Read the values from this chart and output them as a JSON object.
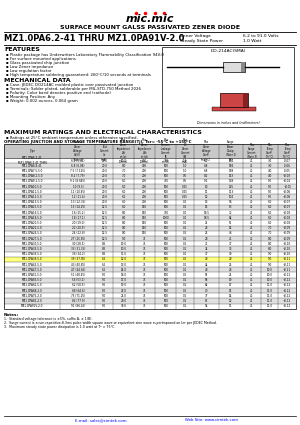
{
  "title_company": "SURFACE MOUNT GALSS PASSIVATED ZENER DIODE",
  "part_range": "MZ1.0PA6.2-41 THRU MZ1.0PA91V-2.0",
  "zener_voltage_label": "Zener Voltage",
  "zener_voltage_val": "6.2 to 91.0 Volts",
  "steady_state_label": "Steady State Power",
  "steady_state_val": "1.0 Watt",
  "features_title": "FEATURES",
  "features": [
    "Plastic package has Underwriters Laboratory Flammability Classification 94V-0",
    "For surface mounted applications",
    "Glass passivated chip junction",
    "Low Zener impedance",
    "Low regulation factor",
    "High temperature soldering guaranteed: 260°C/10 seconds at terminals"
  ],
  "mech_title": "MECHANICAL DATA",
  "mech_data": [
    "Case: JEDEC DO214AC molded plastic over passivated junction",
    "Terminals: Solder plated, solderable per MIL-STD-750 Method 2026",
    "Polarity: Color band denotes positive end (cathode)",
    "Mounting Position: Any",
    "Weight: 0.002 ounces, 0.064 gram"
  ],
  "ratings_title": "MAXIMUM RATINGS AND ELECTRICAL CHARACTERISTICS",
  "ratings_note": "Ratings at 25°C ambient temperature unless otherwise specified.",
  "op_temp": "OPERATING JUNCTION AND STORAGE TEMPERATURE RANGE(Tj), Tsт= -55°C to +150°C",
  "col_headers_line1": [
    "",
    "Nominal Zener",
    "",
    "Max. Zener",
    "Max. Zener",
    "Max Reverse",
    "",
    "Maximum",
    "Maximum",
    "Maximum",
    "Minimum",
    "Maximum"
  ],
  "col_headers_line2": [
    "",
    "Voltage",
    "Zener Test",
    "Impedance",
    "Impedance",
    "Leakage",
    "Maximum",
    "Zener",
    "Surge",
    "Surge",
    "Temperature",
    "Temperature"
  ],
  "col_headers_line3": [
    "Type",
    "Vz (Volts)",
    "Current",
    "Zzt at Izt",
    "Zzk at Izk",
    "Current IR",
    "DC Zener",
    "Voltage",
    "Power",
    "Current",
    "Coefficient",
    "Coefficient"
  ],
  "col_headers_line4": [
    "",
    "(Note 1)",
    "Izt (mA)",
    "(Ohms)",
    "(Ohms)",
    "at VR",
    "Current IzM",
    "Coefficient",
    "Dissipation",
    "(Note 3)",
    "(%/°C)",
    "(%/°C)"
  ],
  "table_data": [
    [
      "MZ1.0PA6.2-41\nMZ1.0PA6.2-41 THRU",
      "6.2 (5.81)",
      "20.0",
      "10.0",
      "400",
      "750",
      "1.0",
      "6.2",
      "204",
      "41",
      "3.0",
      "-0.07"
    ],
    [
      "MZ1.0PA6.8-41",
      "6.8 (6.08)",
      "20.0",
      "8.0",
      "400",
      "500",
      "1.0",
      "6.8",
      "186",
      "41",
      "3.0",
      "-0.06"
    ],
    [
      "MZ1.0PA7.5-5.0",
      "7.5 (7.125)",
      "20.0",
      "7.0",
      "200",
      "500",
      "1.0",
      "6.8",
      "168",
      "41",
      "4.0",
      "-0.05"
    ],
    [
      "MZ1.0PA8.2-5.0",
      "8.2 (7.79)",
      "20.0",
      "7.0",
      "200",
      "500",
      "0.5",
      "8.2",
      "153",
      "41",
      "4.0",
      "+0.03"
    ],
    [
      "MZ1.0PA9.1-5.0",
      "9.1 (8.645)",
      "20.0",
      "6.0",
      "200",
      "750",
      "0.5",
      "9.1",
      "138",
      "41",
      "5.0",
      "+0.04"
    ],
    [
      "MZ1.0PA10-5.0",
      "10 (9.5)",
      "20.0",
      "6.0",
      "200",
      "500",
      "0.25",
      "10",
      "125",
      "41",
      "5.0",
      "+0.05"
    ],
    [
      "MZ1.0PA11-5.0",
      "11 (10.45)",
      "20.0",
      "6.0",
      "200",
      "500",
      "0.25",
      "11",
      "113",
      "41",
      "5.0",
      "+0.06"
    ],
    [
      "MZ1.0PA12-5.0",
      "12 (11.4)",
      "20.0",
      "6.0",
      "200",
      "500",
      "0.25",
      "12",
      "104",
      "41",
      "5.0",
      "+0.06"
    ],
    [
      "MZ1.0PA13-5.0",
      "13 (12.35)",
      "20.0",
      "6.0",
      "200",
      "500",
      "0.1",
      "13",
      "96",
      "41",
      "6.0",
      "+0.07"
    ],
    [
      "MZ1.0PA15-5.0",
      "15 (14.25)",
      "12.5",
      "6.0",
      "150",
      "500",
      "0.1",
      "15",
      "83",
      "41",
      "6.0",
      "+0.07"
    ],
    [
      "MZ1.0PA16-5.0",
      "16 (15.2)",
      "12.5",
      "8.0",
      "150",
      "750",
      "0.1",
      "16.5",
      "72",
      "41",
      "6.0",
      "+0.08"
    ],
    [
      "MZ1.0PA18-5.0",
      "18 (17.1)",
      "12.5",
      "8.0",
      "150",
      "1000",
      "0.1",
      "18.5",
      "64",
      "41",
      "6.0",
      "+0.08"
    ],
    [
      "MZ1.0PA20-5.0",
      "20 (19.0)",
      "12.5",
      "8.0",
      "150",
      "500",
      "0.1",
      "21",
      "55",
      "41",
      "6.0",
      "+0.08"
    ],
    [
      "MZ1.0PA22-5.0",
      "22 (20.9)",
      "12.5",
      "8.0",
      "150",
      "500",
      "0.1",
      "23",
      "52",
      "41",
      "7.0",
      "+0.09"
    ],
    [
      "MZ1.0PA24-5.0",
      "24 (22.8)",
      "12.5",
      "8.0",
      "150",
      "500",
      "0.1",
      "25",
      "46",
      "41",
      "7.0",
      "+0.09"
    ],
    [
      "MZ1.0PA27-5.0",
      "27 (25.65)",
      "12.5",
      "9.0",
      "75",
      "500",
      "0.1",
      "28",
      "41",
      "41",
      "8.0",
      "+0.09"
    ],
    [
      "MZ1.0PA30-5.0",
      "30 (28.5)",
      "8.5",
      "10.0",
      "75",
      "500",
      "0.1",
      "31",
      "37",
      "41",
      "8.0",
      "+0.10"
    ],
    [
      "MZ1.0PA33-5.0",
      "33 (31.35)",
      "8.5",
      "10.0",
      "75",
      "500",
      "0.1",
      "34",
      "33",
      "41",
      "8.0",
      "+0.10"
    ],
    [
      "MZ1.0PA36-5.0",
      "36 (34.2)",
      "8.5",
      "11.0",
      "75",
      "500",
      "0.1",
      "37",
      "30",
      "41",
      "9.0",
      "+0.10"
    ],
    [
      "MZ1.0PA39-5.0",
      "39 (37.05)",
      "6.5",
      "12.0",
      "75",
      "500",
      "0.1",
      "40",
      "28",
      "41",
      "9.0",
      "+0.11"
    ],
    [
      "MZ1.0PA43-5.0",
      "43 (40.85)",
      "6.5",
      "13.0",
      "75",
      "500",
      "0.1",
      "44",
      "25",
      "41",
      "9.0",
      "+0.11"
    ],
    [
      "MZ1.0PA47-5.0",
      "47 (44.65)",
      "6.5",
      "14.0",
      "75",
      "500",
      "0.1",
      "48",
      "23",
      "41",
      "10.0",
      "+0.11"
    ],
    [
      "MZ1.0PA51-5.0",
      "51 (48.45)",
      "5.0",
      "16.0",
      "75",
      "500",
      "0.1",
      "53",
      "21",
      "41",
      "10.0",
      "+0.12"
    ],
    [
      "MZ1.0PA56-5.0",
      "56 (53.2)",
      "5.0",
      "17.0",
      "75",
      "500",
      "0.1",
      "58",
      "19",
      "41",
      "10.0",
      "+0.12"
    ],
    [
      "MZ1.0PA62-5.0",
      "62 (58.9)",
      "5.0",
      "19.0",
      "75",
      "500",
      "0.1",
      "64",
      "17",
      "41",
      "11.0",
      "+0.12"
    ],
    [
      "MZ1.0PA68-2.0",
      "68 (64.6)",
      "5.0",
      "23.0",
      "75",
      "500",
      "0.1",
      "70",
      "15",
      "41",
      "11.0",
      "+0.12"
    ],
    [
      "MZ1.0PA75-2.0",
      "75 (71.25)",
      "5.0",
      "25.0",
      "75",
      "500",
      "0.1",
      "77",
      "14",
      "41",
      "11.0",
      "+0.12"
    ],
    [
      "MZ1.0PA82-2.0",
      "82 (77.9)",
      "5.0",
      "28.0",
      "75",
      "500",
      "0.1",
      "85",
      "12",
      "41",
      "11.0",
      "+0.12"
    ],
    [
      "MZ1.0PA91V-2.0",
      "91 (86.45)",
      "5.0",
      "30.0",
      "75",
      "500",
      "0.1",
      "94",
      "11",
      "41",
      "11.0",
      "+0.12"
    ]
  ],
  "notes": [
    "Standard voltage tolerance is ±5%, suffix A, ± 1(B).",
    "Surge current is a non-repetitive,8.3ms pulse width square wave or equivalent sine wave superimposed on Izᴛ per JEDEC Method.",
    "Maximum steady state power dissipation is 1.0 watt at Tᴿ = 75°C"
  ],
  "contact_email": "sales@cimtek.com",
  "web_site": "www.cimtek.com",
  "highlight_row": 19,
  "header_bg": "#c8c8c8",
  "alt_row_bg": "#e0e0e0",
  "highlight_bg": "#ffff80"
}
